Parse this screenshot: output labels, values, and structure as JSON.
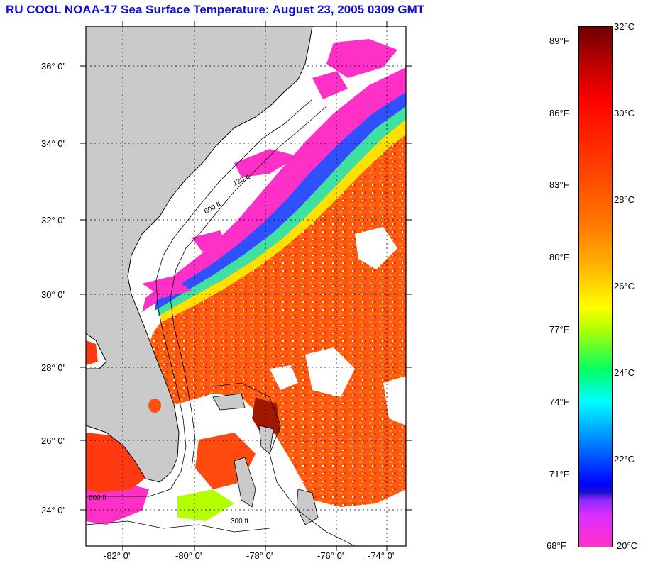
{
  "title": "RU COOL  NOAA-17  Sea Surface Temperature:  August 23, 2005 0309 GMT",
  "axes": {
    "lat_ticks": [
      "36° 0'",
      "34° 0'",
      "32° 0'",
      "30° 0'",
      "28° 0'",
      "26° 0'",
      "24° 0'"
    ],
    "lon_ticks": [
      "-82° 0'",
      "-80° 0'",
      "-78° 0'",
      "-76° 0'",
      "-74° 0'"
    ]
  },
  "contours": {
    "labels": [
      "120 ft",
      "600 ft",
      "300 ft",
      "600 ft"
    ]
  },
  "colorbar": {
    "fahrenheit": [
      "89°F",
      "86°F",
      "83°F",
      "80°F",
      "77°F",
      "74°F",
      "71°F",
      "68°F"
    ],
    "celsius": [
      "32°C",
      "30°C",
      "28°C",
      "26°C",
      "24°C",
      "22°C",
      "20°C"
    ]
  },
  "colors": {
    "land": "#cacaca",
    "cloud": "#ffffff",
    "title": "#1010c8",
    "gulf_stream": "#ff5000",
    "shelf_water": "#ff30c8"
  }
}
